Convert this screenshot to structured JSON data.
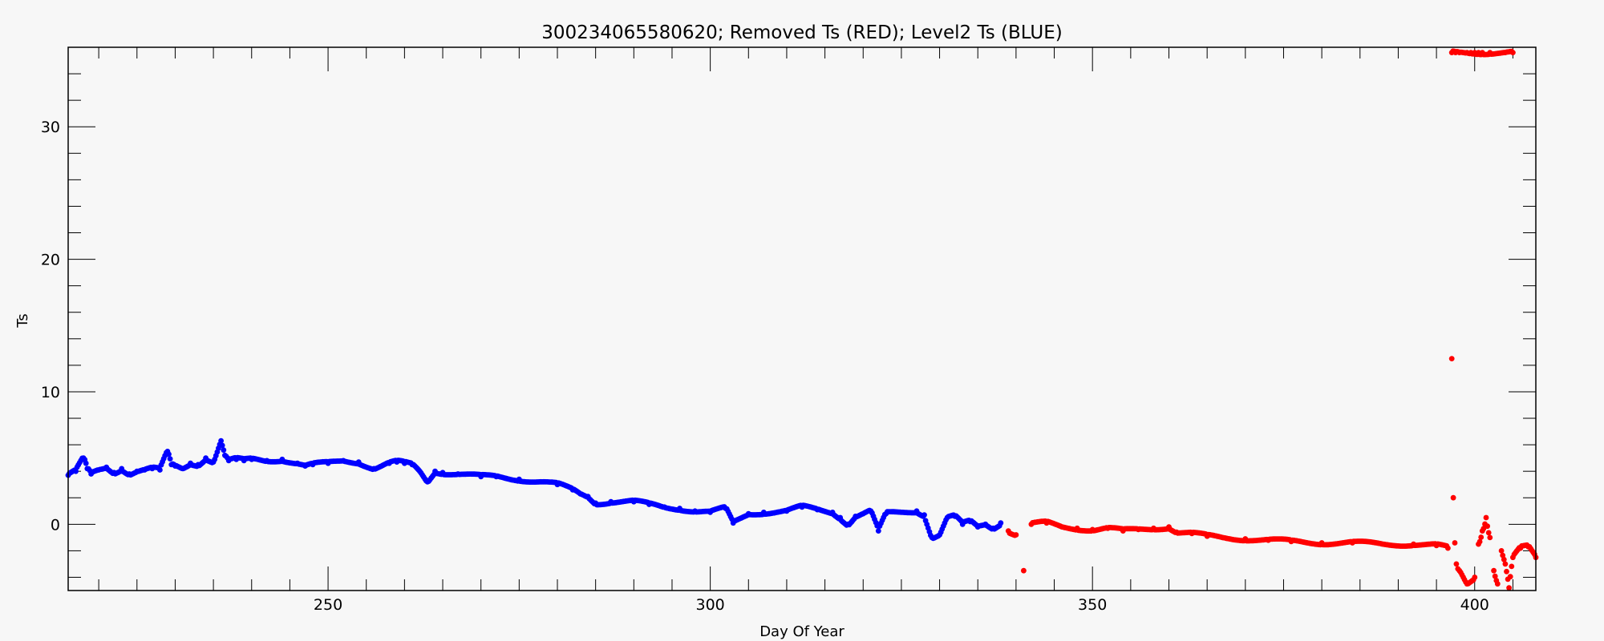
{
  "chart_data": {
    "type": "scatter",
    "title": "300234065580620; Removed Ts (RED); Level2 Ts (BLUE)",
    "xlabel": "Day Of Year",
    "ylabel": "Ts",
    "xlim": [
      216,
      408
    ],
    "ylim": [
      -5,
      36
    ],
    "x_ticks": [
      250,
      300,
      350,
      400
    ],
    "y_ticks": [
      0,
      10,
      20,
      30
    ],
    "grid": false,
    "series": [
      {
        "color": "#0000ff",
        "points": [
          [
            216,
            3.7
          ],
          [
            217,
            4.0
          ],
          [
            218,
            5.0
          ],
          [
            218.5,
            4.2
          ],
          [
            219,
            3.8
          ],
          [
            220,
            4.1
          ],
          [
            221,
            4.3
          ],
          [
            222,
            3.9
          ],
          [
            223,
            4.2
          ],
          [
            224,
            3.8
          ],
          [
            225,
            4.0
          ],
          [
            226,
            4.1
          ],
          [
            227,
            4.2
          ],
          [
            228,
            4.1
          ],
          [
            229,
            5.5
          ],
          [
            229.5,
            4.5
          ],
          [
            230,
            4.4
          ],
          [
            231,
            4.2
          ],
          [
            232,
            4.6
          ],
          [
            233,
            4.5
          ],
          [
            234,
            5.0
          ],
          [
            235,
            4.7
          ],
          [
            236,
            6.3
          ],
          [
            236.5,
            5.2
          ],
          [
            237,
            4.8
          ],
          [
            238,
            4.9
          ],
          [
            239,
            4.8
          ],
          [
            240,
            4.9
          ],
          [
            242,
            4.8
          ],
          [
            244,
            4.9
          ],
          [
            246,
            4.6
          ],
          [
            247,
            4.4
          ],
          [
            248,
            4.5
          ],
          [
            250,
            4.6
          ],
          [
            252,
            4.8
          ],
          [
            254,
            4.7
          ],
          [
            256,
            4.2
          ],
          [
            257,
            4.4
          ],
          [
            258,
            4.6
          ],
          [
            259,
            4.7
          ],
          [
            260,
            4.6
          ],
          [
            261,
            4.5
          ],
          [
            262,
            4.0
          ],
          [
            263,
            3.2
          ],
          [
            264,
            4.0
          ],
          [
            265,
            3.9
          ],
          [
            267,
            3.8
          ],
          [
            270,
            3.6
          ],
          [
            272,
            3.6
          ],
          [
            275,
            3.4
          ],
          [
            278,
            3.2
          ],
          [
            280,
            3.0
          ],
          [
            282,
            2.6
          ],
          [
            283,
            2.3
          ],
          [
            284,
            2.1
          ],
          [
            285,
            1.6
          ],
          [
            287,
            1.7
          ],
          [
            290,
            1.7
          ],
          [
            292,
            1.5
          ],
          [
            294,
            1.3
          ],
          [
            296,
            1.2
          ],
          [
            298,
            1.0
          ],
          [
            300,
            0.9
          ],
          [
            302,
            1.2
          ],
          [
            303,
            0.1
          ],
          [
            305,
            0.8
          ],
          [
            307,
            0.9
          ],
          [
            310,
            1.0
          ],
          [
            312,
            1.3
          ],
          [
            314,
            1.1
          ],
          [
            316,
            0.9
          ],
          [
            317,
            0.5
          ],
          [
            318,
            0.0
          ],
          [
            319,
            0.6
          ],
          [
            320,
            0.8
          ],
          [
            321,
            1.0
          ],
          [
            322,
            -0.5
          ],
          [
            323,
            0.8
          ],
          [
            325,
            0.9
          ],
          [
            327,
            1.0
          ],
          [
            328,
            0.7
          ],
          [
            329,
            -1.0
          ],
          [
            330,
            -0.8
          ],
          [
            331,
            0.5
          ],
          [
            332,
            0.6
          ],
          [
            333,
            0.0
          ],
          [
            334,
            0.2
          ],
          [
            335,
            -0.2
          ],
          [
            336,
            0.0
          ],
          [
            337,
            -0.3
          ],
          [
            338,
            0.1
          ]
        ]
      },
      {
        "color": "#ff0000",
        "points": [
          [
            339,
            -0.5
          ],
          [
            340,
            -0.8
          ],
          [
            341,
            -3.5
          ],
          [
            342,
            0.0
          ],
          [
            344,
            0.1
          ],
          [
            346,
            -0.2
          ],
          [
            348,
            -0.3
          ],
          [
            350,
            -0.4
          ],
          [
            352,
            -0.3
          ],
          [
            354,
            -0.5
          ],
          [
            356,
            -0.4
          ],
          [
            358,
            -0.3
          ],
          [
            360,
            -0.2
          ],
          [
            361,
            -0.6
          ],
          [
            363,
            -0.7
          ],
          [
            365,
            -0.9
          ],
          [
            367,
            -1.0
          ],
          [
            370,
            -1.1
          ],
          [
            373,
            -1.2
          ],
          [
            376,
            -1.3
          ],
          [
            380,
            -1.4
          ],
          [
            384,
            -1.4
          ],
          [
            388,
            -1.5
          ],
          [
            392,
            -1.5
          ],
          [
            395,
            -1.6
          ],
          [
            396.5,
            -1.8
          ],
          [
            397,
            12.5
          ],
          [
            397.2,
            2.0
          ],
          [
            397.4,
            -1.4
          ],
          [
            397.6,
            -3.0
          ],
          [
            398,
            -3.5
          ],
          [
            399,
            -4.5
          ],
          [
            400,
            -4.0
          ],
          [
            400.5,
            -1.5
          ],
          [
            401,
            -0.5
          ],
          [
            401.5,
            0.5
          ],
          [
            402,
            -1.0
          ],
          [
            402.5,
            -3.5
          ],
          [
            403,
            -4.5
          ],
          [
            403.5,
            -2.0
          ],
          [
            404,
            -3.0
          ],
          [
            404.5,
            -4.8
          ],
          [
            405,
            -2.5
          ],
          [
            406,
            -1.8
          ],
          [
            407,
            -1.7
          ],
          [
            408,
            -2.5
          ],
          [
            397,
            35.6
          ],
          [
            397.5,
            35.6
          ],
          [
            398,
            35.6
          ],
          [
            398.5,
            35.6
          ],
          [
            399,
            35.6
          ],
          [
            399.5,
            35.6
          ],
          [
            400,
            35.6
          ],
          [
            400.5,
            35.6
          ],
          [
            401,
            35.6
          ],
          [
            402,
            35.6
          ],
          [
            404,
            35.6
          ],
          [
            405,
            35.6
          ]
        ]
      }
    ]
  }
}
